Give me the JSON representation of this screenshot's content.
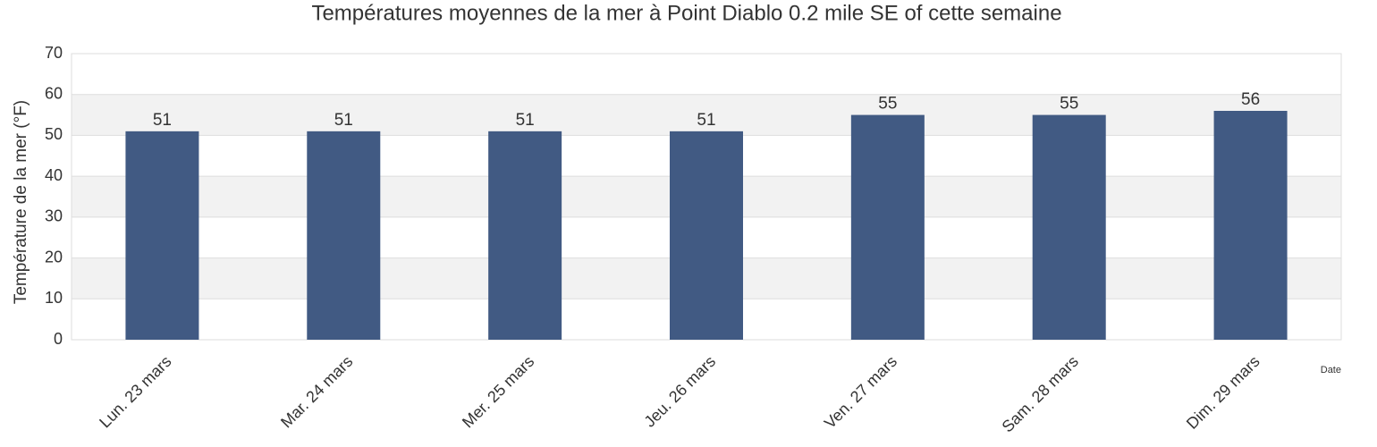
{
  "chart_data": {
    "type": "bar",
    "title": "Températures moyennes de la mer à Point Diablo 0.2 mile SE of cette semaine",
    "y_label": "Température de la mer (°F)",
    "x_label": "Date",
    "categories": [
      "Lun. 23 mars",
      "Mar. 24 mars",
      "Mer. 25 mars",
      "Jeu. 26 mars",
      "Ven. 27 mars",
      "Sam. 28 mars",
      "Dim. 29 mars"
    ],
    "values": [
      51,
      51,
      51,
      51,
      55,
      55,
      56
    ],
    "color": "#415a83",
    "ylim": [
      0,
      70
    ],
    "yticks": [
      0,
      10,
      20,
      30,
      40,
      50,
      60,
      70
    ],
    "grid": true
  }
}
